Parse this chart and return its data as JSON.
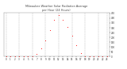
{
  "title": "Milwaukee Weather Solar Radiation Average",
  "subtitle": "per Hour (24 Hours)",
  "hours": [
    0,
    1,
    2,
    3,
    4,
    5,
    6,
    7,
    8,
    9,
    10,
    11,
    12,
    13,
    14,
    15,
    16,
    17,
    18,
    19,
    20,
    21,
    22,
    23
  ],
  "values": [
    0,
    0,
    0,
    0,
    0,
    0,
    2,
    25,
    85,
    170,
    275,
    385,
    430,
    385,
    305,
    215,
    115,
    38,
    4,
    0,
    0,
    0,
    0,
    0
  ],
  "ylim": [
    0,
    460
  ],
  "dot_color": "#ff0000",
  "line_color": "#ff0000",
  "bg_color": "#ffffff",
  "grid_color": "#aaaaaa",
  "title_color": "#444444",
  "tick_color": "#333333",
  "yticks": [
    0,
    50,
    100,
    150,
    200,
    250,
    300,
    350,
    400,
    450
  ],
  "xtick_major": [
    0,
    3,
    6,
    9,
    12,
    15,
    18,
    21,
    23
  ]
}
